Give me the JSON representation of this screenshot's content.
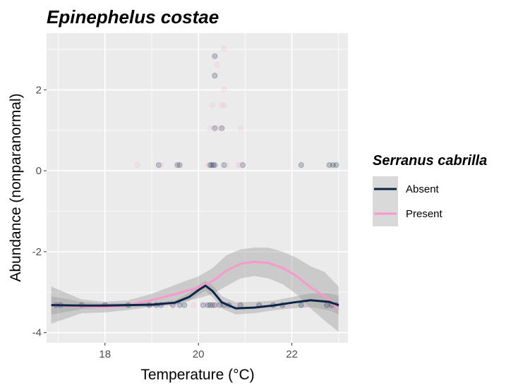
{
  "chart_data": {
    "type": "scatter",
    "title": "Epinephelus costae",
    "xlabel": "Temperature (°C)",
    "ylabel": "Abundance (nonparanormal)",
    "xlim": [
      16.75,
      23.2
    ],
    "ylim": [
      -4.25,
      3.4
    ],
    "x_ticks": [
      18,
      20,
      22
    ],
    "y_ticks": [
      -4,
      -2,
      0,
      2
    ],
    "x_tick_labels": [
      "18",
      "20",
      "22"
    ],
    "y_tick_labels": [
      "-4",
      "-2",
      "0",
      "2"
    ],
    "grid": true,
    "legend": {
      "title": "Serranus cabrilla",
      "position": "right",
      "entries": [
        "Absent",
        "Present"
      ]
    },
    "colors": {
      "Absent": "#0c2447",
      "Present": "#f899cc",
      "panel": "#ebebeb",
      "grid": "#ffffff",
      "ribbon": "#999999"
    },
    "series": [
      {
        "name": "Absent",
        "points": [
          [
            16.95,
            -3.32
          ],
          [
            17.05,
            -3.32
          ],
          [
            17.5,
            -3.32
          ],
          [
            18.0,
            -3.32
          ],
          [
            18.5,
            -3.32
          ],
          [
            18.95,
            -3.32
          ],
          [
            19.1,
            -3.32
          ],
          [
            19.2,
            -3.32
          ],
          [
            19.45,
            -3.32
          ],
          [
            19.6,
            -3.32
          ],
          [
            19.7,
            -3.32
          ],
          [
            20.1,
            -3.32
          ],
          [
            20.2,
            -3.32
          ],
          [
            20.25,
            -3.32
          ],
          [
            20.3,
            -3.32
          ],
          [
            20.35,
            -3.32
          ],
          [
            20.45,
            -3.32
          ],
          [
            20.55,
            -3.32
          ],
          [
            20.65,
            -3.32
          ],
          [
            20.9,
            -3.32
          ],
          [
            21.3,
            -3.32
          ],
          [
            21.6,
            -3.32
          ],
          [
            21.8,
            -3.32
          ],
          [
            22.2,
            -3.32
          ],
          [
            22.75,
            -3.32
          ],
          [
            22.85,
            -3.32
          ],
          [
            22.95,
            -3.32
          ],
          [
            19.15,
            0.14
          ],
          [
            19.55,
            0.14
          ],
          [
            19.6,
            0.14
          ],
          [
            20.25,
            0.14
          ],
          [
            20.28,
            0.14
          ],
          [
            20.32,
            0.14
          ],
          [
            20.35,
            0.14
          ],
          [
            20.55,
            0.14
          ],
          [
            20.95,
            0.14
          ],
          [
            22.2,
            0.14
          ],
          [
            22.8,
            0.14
          ],
          [
            22.88,
            0.14
          ],
          [
            22.95,
            0.14
          ],
          [
            20.35,
            1.05
          ],
          [
            20.5,
            1.05
          ],
          [
            20.35,
            2.35
          ],
          [
            20.35,
            2.83
          ]
        ],
        "smooth": {
          "x": [
            16.85,
            17.5,
            18.0,
            18.5,
            19.0,
            19.5,
            19.8,
            20.0,
            20.15,
            20.3,
            20.5,
            20.8,
            21.2,
            21.6,
            22.0,
            22.4,
            22.8,
            23.0
          ],
          "y": [
            -3.32,
            -3.33,
            -3.33,
            -3.32,
            -3.31,
            -3.26,
            -3.12,
            -2.95,
            -2.84,
            -2.97,
            -3.25,
            -3.4,
            -3.38,
            -3.33,
            -3.26,
            -3.2,
            -3.24,
            -3.32
          ],
          "lower": [
            -3.55,
            -3.42,
            -3.38,
            -3.37,
            -3.36,
            -3.32,
            -3.22,
            -3.07,
            -2.97,
            -3.12,
            -3.4,
            -3.55,
            -3.52,
            -3.45,
            -3.4,
            -3.37,
            -3.45,
            -3.55
          ],
          "upper": [
            -3.1,
            -3.24,
            -3.28,
            -3.27,
            -3.26,
            -3.2,
            -3.02,
            -2.83,
            -2.72,
            -2.82,
            -3.1,
            -3.25,
            -3.24,
            -3.21,
            -3.12,
            -3.03,
            -3.03,
            -3.09
          ]
        }
      },
      {
        "name": "Present",
        "points": [
          [
            16.95,
            -3.32
          ],
          [
            17.1,
            -3.32
          ],
          [
            18.7,
            -3.32
          ],
          [
            19.0,
            -3.32
          ],
          [
            19.3,
            -3.32
          ],
          [
            19.5,
            -3.32
          ],
          [
            19.9,
            -3.32
          ],
          [
            20.1,
            -3.32
          ],
          [
            20.3,
            -3.32
          ],
          [
            20.4,
            -3.32
          ],
          [
            20.6,
            -3.32
          ],
          [
            20.85,
            -3.32
          ],
          [
            21.9,
            -3.32
          ],
          [
            22.3,
            -3.32
          ],
          [
            18.7,
            0.14
          ],
          [
            19.2,
            0.14
          ],
          [
            19.55,
            0.14
          ],
          [
            20.2,
            0.14
          ],
          [
            20.35,
            0.14
          ],
          [
            20.6,
            0.14
          ],
          [
            20.85,
            0.14
          ],
          [
            20.9,
            0.14
          ],
          [
            20.25,
            1.05
          ],
          [
            20.45,
            1.05
          ],
          [
            20.9,
            1.05
          ],
          [
            20.3,
            1.62
          ],
          [
            20.5,
            1.62
          ],
          [
            20.55,
            1.62
          ],
          [
            20.55,
            2.02
          ],
          [
            20.4,
            2.62
          ],
          [
            20.55,
            3.02
          ]
        ],
        "smooth": {
          "x": [
            16.85,
            17.5,
            18.0,
            18.5,
            19.0,
            19.5,
            20.0,
            20.3,
            20.6,
            20.9,
            21.2,
            21.5,
            21.8,
            22.1,
            22.4,
            22.7,
            23.0
          ],
          "y": [
            -3.32,
            -3.35,
            -3.37,
            -3.32,
            -3.2,
            -3.05,
            -2.88,
            -2.73,
            -2.47,
            -2.3,
            -2.25,
            -2.28,
            -2.4,
            -2.6,
            -2.88,
            -3.1,
            -3.42
          ],
          "lower": [
            -3.78,
            -3.52,
            -3.5,
            -3.44,
            -3.36,
            -3.28,
            -3.15,
            -3.05,
            -2.85,
            -2.66,
            -2.6,
            -2.66,
            -2.8,
            -3.05,
            -3.4,
            -3.7,
            -3.98
          ],
          "upper": [
            -2.86,
            -3.18,
            -3.24,
            -3.2,
            -3.04,
            -2.82,
            -2.61,
            -2.41,
            -2.09,
            -1.94,
            -1.9,
            -1.9,
            -2.0,
            -2.15,
            -2.36,
            -2.5,
            -2.86
          ]
        }
      }
    ]
  }
}
